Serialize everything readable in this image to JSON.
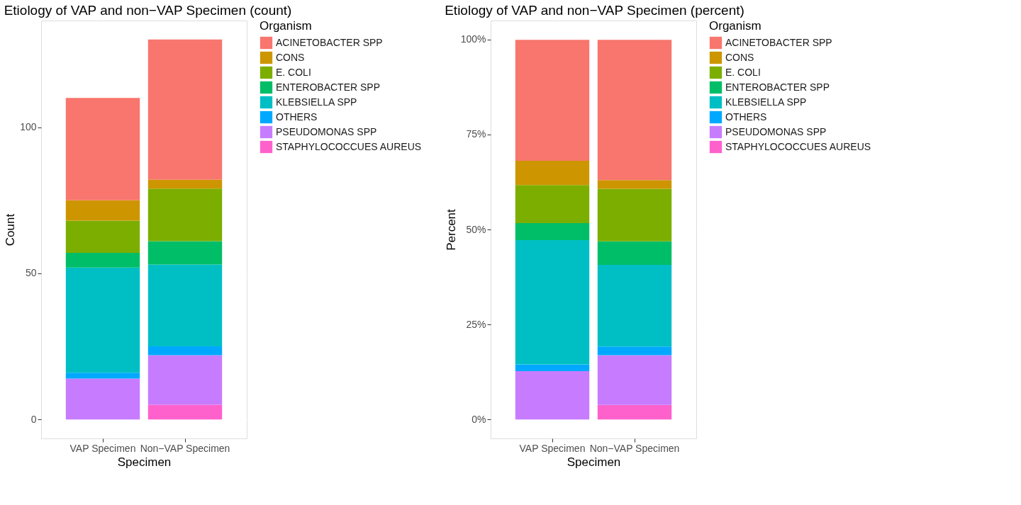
{
  "chart_data": [
    {
      "type": "bar",
      "stacked": true,
      "title": "Etiology of VAP and non−VAP Specimen (count)",
      "xlabel": "Specimen",
      "ylabel": "Count",
      "legend_title": "Organism",
      "legend": "right",
      "grid": true,
      "categories": [
        "VAP Specimen",
        "Non−VAP Specimen"
      ],
      "ylim": [
        -6.5,
        136.5
      ],
      "yticks": [
        0,
        50,
        100
      ],
      "series": [
        {
          "name": "STAPHYLOCOCCUES AUREUS",
          "color": "#ff61cc",
          "values": [
            0,
            5
          ]
        },
        {
          "name": "PSEUDOMONAS SPP",
          "color": "#c77cff",
          "values": [
            14,
            17
          ]
        },
        {
          "name": "OTHERS",
          "color": "#00a9ff",
          "values": [
            2,
            3
          ]
        },
        {
          "name": "KLEBSIELLA SPP",
          "color": "#00bfc4",
          "values": [
            36,
            28
          ]
        },
        {
          "name": "ENTEROBACTER SPP",
          "color": "#00be67",
          "values": [
            5,
            8
          ]
        },
        {
          "name": "E. COLI",
          "color": "#7cae00",
          "values": [
            11,
            18
          ]
        },
        {
          "name": "CONS",
          "color": "#cd9600",
          "values": [
            7,
            3
          ]
        },
        {
          "name": "ACINETOBACTER SPP",
          "color": "#f8766d",
          "values": [
            35,
            48
          ]
        }
      ]
    },
    {
      "type": "bar",
      "stacked": true,
      "title": "Etiology of VAP and non−VAP Specimen (percent)",
      "xlabel": "Specimen",
      "ylabel": "Percent",
      "legend_title": "Organism",
      "legend": "right",
      "grid": true,
      "categories": [
        "VAP Specimen",
        "Non−VAP Specimen"
      ],
      "ylim": [
        -5,
        105
      ],
      "yticks": [
        {
          "value": 0,
          "label": "0%"
        },
        {
          "value": 25,
          "label": "25%"
        },
        {
          "value": 50,
          "label": "50%"
        },
        {
          "value": 75,
          "label": "75%"
        },
        {
          "value": 100,
          "label": "100%"
        }
      ],
      "series": [
        {
          "name": "STAPHYLOCOCCUES AUREUS",
          "color": "#ff61cc",
          "values": [
            0,
            3.8
          ]
        },
        {
          "name": "PSEUDOMONAS SPP",
          "color": "#c77cff",
          "values": [
            12.7,
            13.1
          ]
        },
        {
          "name": "OTHERS",
          "color": "#00a9ff",
          "values": [
            1.8,
            2.3
          ]
        },
        {
          "name": "KLEBSIELLA SPP",
          "color": "#00bfc4",
          "values": [
            32.7,
            21.5
          ]
        },
        {
          "name": "ENTEROBACTER SPP",
          "color": "#00be67",
          "values": [
            4.5,
            6.2
          ]
        },
        {
          "name": "E. COLI",
          "color": "#7cae00",
          "values": [
            10.0,
            13.8
          ]
        },
        {
          "name": "CONS",
          "color": "#cd9600",
          "values": [
            6.4,
            2.3
          ]
        },
        {
          "name": "ACINETOBACTER SPP",
          "color": "#f8766d",
          "values": [
            31.8,
            36.9
          ]
        }
      ]
    }
  ]
}
